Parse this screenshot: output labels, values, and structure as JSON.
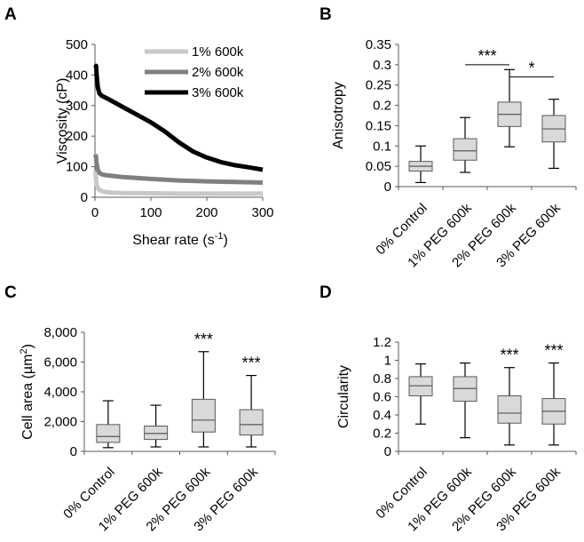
{
  "chart_data": [
    {
      "panel": "A",
      "type": "line",
      "xlabel": "Shear rate (s",
      "xlabel_sup": "-1",
      "xlabel_end": ")",
      "ylabel": "Viscosity (cP)",
      "xlim": [
        0,
        300
      ],
      "ylim": [
        0,
        500
      ],
      "xticks": [
        0,
        100,
        200,
        300
      ],
      "yticks": [
        0,
        100,
        200,
        300,
        400,
        500
      ],
      "series": [
        {
          "name": "1% 600k",
          "color": "#c8c8c8",
          "x": [
            1,
            2,
            3,
            5,
            8,
            12,
            20,
            30,
            50,
            100,
            150,
            200,
            250,
            300
          ],
          "y": [
            85,
            55,
            40,
            30,
            24,
            20,
            17,
            15,
            14,
            13,
            12,
            12,
            12,
            12
          ]
        },
        {
          "name": "2% 600k",
          "color": "#7f7f7f",
          "x": [
            1,
            2,
            3,
            5,
            8,
            12,
            20,
            30,
            50,
            100,
            150,
            200,
            250,
            300
          ],
          "y": [
            140,
            130,
            110,
            90,
            80,
            75,
            72,
            70,
            66,
            60,
            55,
            52,
            50,
            48
          ]
        },
        {
          "name": "3% 600k",
          "color": "#000000",
          "x": [
            1,
            2,
            3,
            5,
            8,
            12,
            20,
            30,
            50,
            75,
            100,
            125,
            150,
            175,
            200,
            225,
            250,
            275,
            300
          ],
          "y": [
            425,
            430,
            400,
            360,
            340,
            332,
            325,
            315,
            295,
            270,
            245,
            215,
            180,
            150,
            130,
            115,
            105,
            98,
            90
          ]
        }
      ]
    },
    {
      "panel": "B",
      "type": "box",
      "ylabel": "Anisotropy",
      "ylim": [
        0,
        0.35
      ],
      "yticks": [
        "0",
        "0.05",
        "0.1",
        "0.15",
        "0.2",
        "0.25",
        "0.3",
        "0.35"
      ],
      "categories": [
        "0% Control",
        "1% PEG 600k",
        "2% PEG 600k",
        "3% PEG 600k"
      ],
      "boxes": [
        {
          "min": 0.01,
          "q1": 0.038,
          "median": 0.05,
          "q3": 0.062,
          "max": 0.1
        },
        {
          "min": 0.035,
          "q1": 0.065,
          "median": 0.088,
          "q3": 0.118,
          "max": 0.17
        },
        {
          "min": 0.098,
          "q1": 0.148,
          "median": 0.178,
          "q3": 0.208,
          "max": 0.288
        },
        {
          "min": 0.045,
          "q1": 0.11,
          "median": 0.142,
          "q3": 0.175,
          "max": 0.215
        }
      ],
      "brackets": [
        {
          "from": 1,
          "to": 2,
          "y": 0.3,
          "label": "***"
        },
        {
          "from": 2,
          "to": 3,
          "y": 0.27,
          "label": "*"
        }
      ]
    },
    {
      "panel": "C",
      "type": "box",
      "ylabel": "Cell area (µm",
      "ylabel_sup": "2",
      "ylabel_end": ")",
      "ylim": [
        0,
        8000
      ],
      "yticks": [
        "0",
        "2,000",
        "4,000",
        "6,000",
        "8,000"
      ],
      "categories": [
        "0% Control",
        "1% PEG 600k",
        "2% PEG 600k",
        "3% PEG 600k"
      ],
      "boxes": [
        {
          "min": 250,
          "q1": 600,
          "median": 1000,
          "q3": 1800,
          "max": 3400
        },
        {
          "min": 300,
          "q1": 800,
          "median": 1200,
          "q3": 1700,
          "max": 3100
        },
        {
          "min": 300,
          "q1": 1300,
          "median": 2100,
          "q3": 3500,
          "max": 6700
        },
        {
          "min": 300,
          "q1": 1100,
          "median": 1800,
          "q3": 2800,
          "max": 5100
        }
      ],
      "stars": [
        {
          "index": 2,
          "label": "***"
        },
        {
          "index": 3,
          "label": "***"
        }
      ]
    },
    {
      "panel": "D",
      "type": "box",
      "ylabel": "Circularity",
      "ylim": [
        0,
        1.2
      ],
      "yticks": [
        "0",
        "0.2",
        "0.4",
        "0.6",
        "0.8",
        "1",
        "1.2"
      ],
      "categories": [
        "0% Control",
        "1% PEG 600k",
        "2% PEG 600k",
        "3% PEG 600k"
      ],
      "boxes": [
        {
          "min": 0.3,
          "q1": 0.61,
          "median": 0.72,
          "q3": 0.82,
          "max": 0.96
        },
        {
          "min": 0.15,
          "q1": 0.55,
          "median": 0.69,
          "q3": 0.82,
          "max": 0.97
        },
        {
          "min": 0.07,
          "q1": 0.31,
          "median": 0.42,
          "q3": 0.61,
          "max": 0.92
        },
        {
          "min": 0.07,
          "q1": 0.3,
          "median": 0.44,
          "q3": 0.58,
          "max": 0.97
        }
      ],
      "stars": [
        {
          "index": 2,
          "label": "***"
        },
        {
          "index": 3,
          "label": "***"
        }
      ]
    }
  ]
}
